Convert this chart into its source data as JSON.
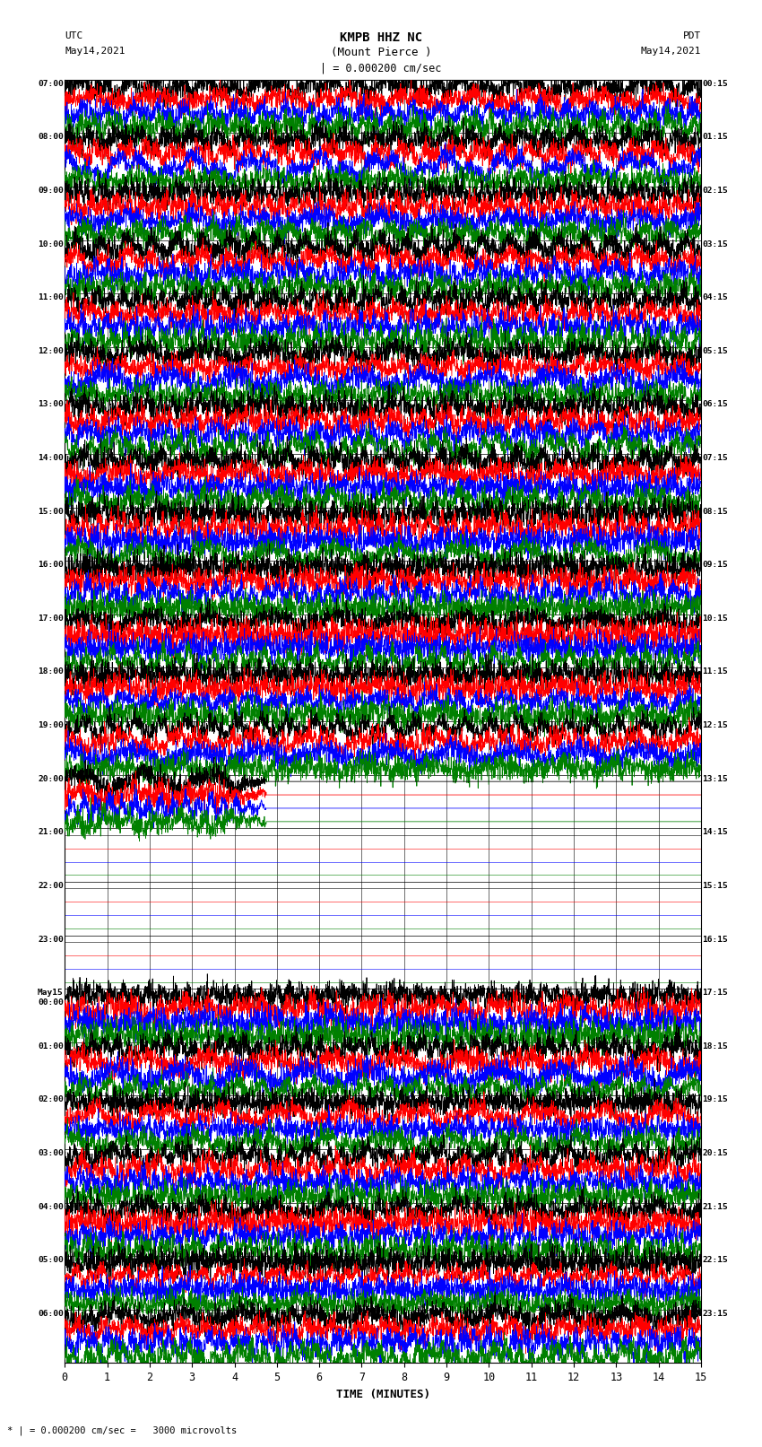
{
  "title_line1": "KMPB HHZ NC",
  "title_line2": "(Mount Pierce )",
  "title_line3": "| = 0.000200 cm/sec",
  "left_header_line1": "UTC",
  "left_header_line2": "May14,2021",
  "right_header_line1": "PDT",
  "right_header_line2": "May14,2021",
  "footer": "* | = 0.000200 cm/sec =   3000 microvolts",
  "xlabel": "TIME (MINUTES)",
  "left_times_utc": [
    "07:00",
    "08:00",
    "09:00",
    "10:00",
    "11:00",
    "12:00",
    "13:00",
    "14:00",
    "15:00",
    "16:00",
    "17:00",
    "18:00",
    "19:00",
    "20:00",
    "21:00",
    "22:00",
    "23:00",
    "May15\n00:00",
    "01:00",
    "02:00",
    "03:00",
    "04:00",
    "05:00",
    "06:00"
  ],
  "right_times_pdt": [
    "00:15",
    "01:15",
    "02:15",
    "03:15",
    "04:15",
    "05:15",
    "06:15",
    "07:15",
    "08:15",
    "09:15",
    "10:15",
    "11:15",
    "12:15",
    "13:15",
    "14:15",
    "15:15",
    "16:15",
    "17:15",
    "18:15",
    "19:15",
    "20:15",
    "21:15",
    "22:15",
    "23:15"
  ],
  "n_rows": 24,
  "colors": [
    "black",
    "red",
    "blue",
    "green"
  ],
  "bg_color": "white",
  "xmin": 0,
  "xmax": 15,
  "xticks": [
    0,
    1,
    2,
    3,
    4,
    5,
    6,
    7,
    8,
    9,
    10,
    11,
    12,
    13,
    14,
    15
  ],
  "figwidth": 8.5,
  "figheight": 16.13,
  "dpi": 100,
  "quiet_rows": [
    14,
    15,
    16
  ],
  "partial_quiet_rows": [
    13
  ],
  "n_pts": 3000
}
